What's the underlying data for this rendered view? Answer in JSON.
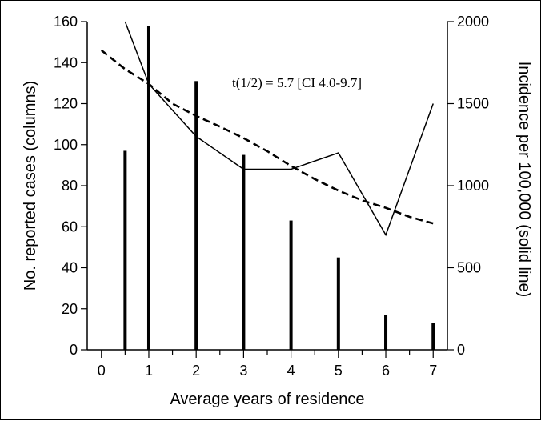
{
  "chart_data": {
    "type": "bar",
    "title": "",
    "xlabel": "Average years of residence",
    "ylabel": "No. reported cases (columns)",
    "y2label": "Incidence per 100,000 (solid line)",
    "xlim": [
      -0.3,
      7.3
    ],
    "ylim": [
      0,
      160
    ],
    "y2lim": [
      0,
      2000
    ],
    "x_ticks": [
      0,
      1,
      2,
      3,
      4,
      5,
      6,
      7
    ],
    "y_ticks": [
      0,
      20,
      40,
      60,
      80,
      100,
      120,
      140,
      160
    ],
    "y2_ticks": [
      0,
      500,
      1000,
      1500,
      2000
    ],
    "annotation": "t(1/2) = 5.7 [CI 4.0-9.7]",
    "grid": false,
    "series": [
      {
        "kind": "bar",
        "axis": "left",
        "x": [
          0.5,
          1,
          2,
          3,
          4,
          5,
          6,
          7
        ],
        "values": [
          97,
          158,
          131,
          95,
          63,
          45,
          17,
          13
        ]
      },
      {
        "kind": "line",
        "style": "solid",
        "axis": "right",
        "x": [
          0.5,
          1,
          2,
          3,
          4,
          5,
          6,
          7
        ],
        "values": [
          2000,
          1620,
          1300,
          1100,
          1100,
          1200,
          700,
          1500
        ]
      },
      {
        "kind": "line",
        "style": "dashed",
        "axis": "right",
        "x": [
          0,
          0.5,
          1,
          1.5,
          2,
          2.5,
          3,
          3.5,
          4,
          4.5,
          5,
          5.5,
          6,
          6.5,
          7
        ],
        "values": [
          1825,
          1710,
          1620,
          1500,
          1425,
          1360,
          1290,
          1210,
          1120,
          1040,
          970,
          910,
          865,
          810,
          770
        ]
      }
    ]
  }
}
